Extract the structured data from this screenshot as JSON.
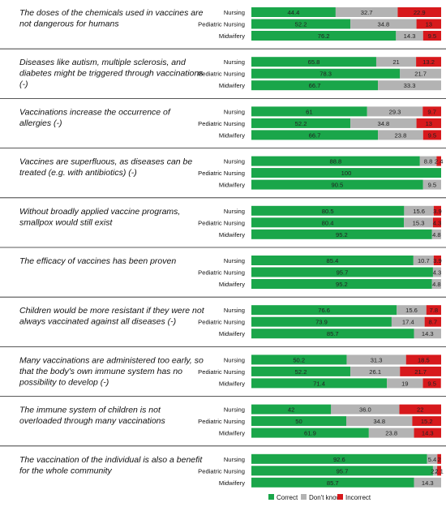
{
  "chart_data": {
    "type": "bar",
    "orientation": "horizontal",
    "stacked": "100%",
    "groups": [
      "Nursing",
      "Pediatric Nursing",
      "Midwifery"
    ],
    "series_names": [
      "Correct",
      "Don't know",
      "Incorrect"
    ],
    "colors": {
      "Correct": "#1aa64a",
      "Don't know": "#b3b3b3",
      "Incorrect": "#d7191c"
    },
    "legend_position": "bottom",
    "statements": [
      {
        "lines": [
          "The doses of the chemicals used in vaccines are",
          "not dangerous for humans"
        ],
        "rows": [
          {
            "group": "Nursing",
            "values": [
              44.4,
              32.7,
              22.9
            ],
            "labels": [
              "44.4",
              "32.7",
              "22.9"
            ]
          },
          {
            "group": "Pediatric Nursing",
            "values": [
              52.2,
              34.8,
              13.0
            ],
            "labels": [
              "52.2",
              "34.8",
              "13"
            ]
          },
          {
            "group": "Midwifery",
            "values": [
              76.2,
              14.3,
              9.5
            ],
            "labels": [
              "76.2",
              "14.3",
              "9.5"
            ]
          }
        ]
      },
      {
        "lines": [
          "Diseases like autism, multiple sclerosis, and",
          "diabetes might be triggered through vaccinations",
          "(-)"
        ],
        "rows": [
          {
            "group": "Nursing",
            "values": [
              65.8,
              21.0,
              13.2
            ],
            "labels": [
              "65.8",
              "21",
              "13.2"
            ]
          },
          {
            "group": "Pediatric Nursing",
            "values": [
              78.3,
              21.7,
              0
            ],
            "labels": [
              "78.3",
              "21.7",
              ""
            ]
          },
          {
            "group": "Midwifery",
            "values": [
              66.7,
              33.3,
              0
            ],
            "labels": [
              "66.7",
              "33.3",
              ""
            ]
          }
        ]
      },
      {
        "lines": [
          "Vaccinations increase the occurrence of",
          "allergies (-)"
        ],
        "rows": [
          {
            "group": "Nursing",
            "values": [
              61.0,
              29.3,
              9.7
            ],
            "labels": [
              "61",
              "29.3",
              "9.7"
            ]
          },
          {
            "group": "Pediatric Nursing",
            "values": [
              52.2,
              34.8,
              13.0
            ],
            "labels": [
              "52.2",
              "34.8",
              "13"
            ]
          },
          {
            "group": "Midwifery",
            "values": [
              66.7,
              23.8,
              9.5
            ],
            "labels": [
              "66.7",
              "23.8",
              "9.5"
            ]
          }
        ]
      },
      {
        "lines": [
          "Vaccines are superfluous, as diseases can be",
          "treated (e.g. with antibiotics) (-)"
        ],
        "rows": [
          {
            "group": "Nursing",
            "values": [
              88.8,
              8.8,
              2.4
            ],
            "labels": [
              "88.8",
              "8.8",
              "2.4"
            ]
          },
          {
            "group": "Pediatric Nursing",
            "values": [
              100,
              0,
              0
            ],
            "labels": [
              "100",
              "",
              ""
            ]
          },
          {
            "group": "Midwifery",
            "values": [
              90.5,
              9.5,
              0
            ],
            "labels": [
              "90.5",
              "9.5",
              ""
            ]
          }
        ]
      },
      {
        "lines": [
          "Without broadly applied vaccine programs,",
          "smallpox would still exist"
        ],
        "rows": [
          {
            "group": "Nursing",
            "values": [
              80.5,
              15.6,
              3.9
            ],
            "labels": [
              "80.5",
              "15.6",
              "3.9"
            ]
          },
          {
            "group": "Pediatric Nursing",
            "values": [
              80.4,
              15.3,
              4.3
            ],
            "labels": [
              "80.4",
              "15.3",
              "4.3"
            ]
          },
          {
            "group": "Midwifery",
            "values": [
              95.2,
              4.8,
              0
            ],
            "labels": [
              "95.2",
              "4.8",
              ""
            ]
          }
        ]
      },
      {
        "lines": [
          "The efficacy of vaccines has been proven"
        ],
        "rows": [
          {
            "group": "Nursing",
            "values": [
              85.4,
              10.7,
              3.9
            ],
            "labels": [
              "85.4",
              "10.7",
              "3.9"
            ]
          },
          {
            "group": "Pediatric Nursing",
            "values": [
              95.7,
              4.3,
              0
            ],
            "labels": [
              "95.7",
              "4.3",
              ""
            ]
          },
          {
            "group": "Midwifery",
            "values": [
              95.2,
              4.8,
              0
            ],
            "labels": [
              "95.2",
              "4.8",
              ""
            ]
          }
        ]
      },
      {
        "lines": [
          "Children would be more resistant if they were not",
          "always vaccinated against all diseases (-)"
        ],
        "rows": [
          {
            "group": "Nursing",
            "values": [
              76.6,
              15.6,
              7.8
            ],
            "labels": [
              "76.6",
              "15.6",
              "7.8"
            ]
          },
          {
            "group": "Pediatric Nursing",
            "values": [
              73.9,
              17.4,
              8.7
            ],
            "labels": [
              "73.9",
              "17.4",
              "8.7"
            ]
          },
          {
            "group": "Midwifery",
            "values": [
              85.7,
              14.3,
              0
            ],
            "labels": [
              "85.7",
              "14.3",
              ""
            ]
          }
        ]
      },
      {
        "lines": [
          "Many vaccinations are administered too early, so",
          "that the body's own immune system has no",
          "possibility to develop (-)"
        ],
        "rows": [
          {
            "group": "Nursing",
            "values": [
              50.2,
              31.3,
              18.5
            ],
            "labels": [
              "50.2",
              "31.3",
              "18.5"
            ]
          },
          {
            "group": "Pediatric Nursing",
            "values": [
              52.2,
              26.1,
              21.7
            ],
            "labels": [
              "52.2",
              "26.1",
              "21.7"
            ]
          },
          {
            "group": "Midwifery",
            "values": [
              71.4,
              19.0,
              9.5
            ],
            "labels": [
              "71.4",
              "19",
              "9.5"
            ]
          }
        ]
      },
      {
        "lines": [
          "The immune system of children is not",
          "overloaded through many vaccinations"
        ],
        "rows": [
          {
            "group": "Nursing",
            "values": [
              42.0,
              36.0,
              22.0
            ],
            "labels": [
              "42",
              "36.0",
              "22"
            ]
          },
          {
            "group": "Pediatric Nursing",
            "values": [
              50.0,
              34.8,
              15.2
            ],
            "labels": [
              "50",
              "34.8",
              "15.2"
            ]
          },
          {
            "group": "Midwifery",
            "values": [
              61.9,
              23.8,
              14.3
            ],
            "labels": [
              "61.9",
              "23.8",
              "14.3"
            ]
          }
        ]
      },
      {
        "lines": [
          "The vaccination of the individual is also a benefit",
          "for the whole community"
        ],
        "rows": [
          {
            "group": "Nursing",
            "values": [
              92.6,
              5.4,
              2.0
            ],
            "labels": [
              "92.6",
              "5.4",
              "2"
            ]
          },
          {
            "group": "Pediatric Nursing",
            "values": [
              95.7,
              2.2,
              2.1
            ],
            "labels": [
              "95.7",
              "2.2",
              "2.1"
            ]
          },
          {
            "group": "Midwifery",
            "values": [
              85.7,
              14.3,
              0
            ],
            "labels": [
              "85.7",
              "14.3",
              ""
            ]
          }
        ]
      }
    ]
  }
}
